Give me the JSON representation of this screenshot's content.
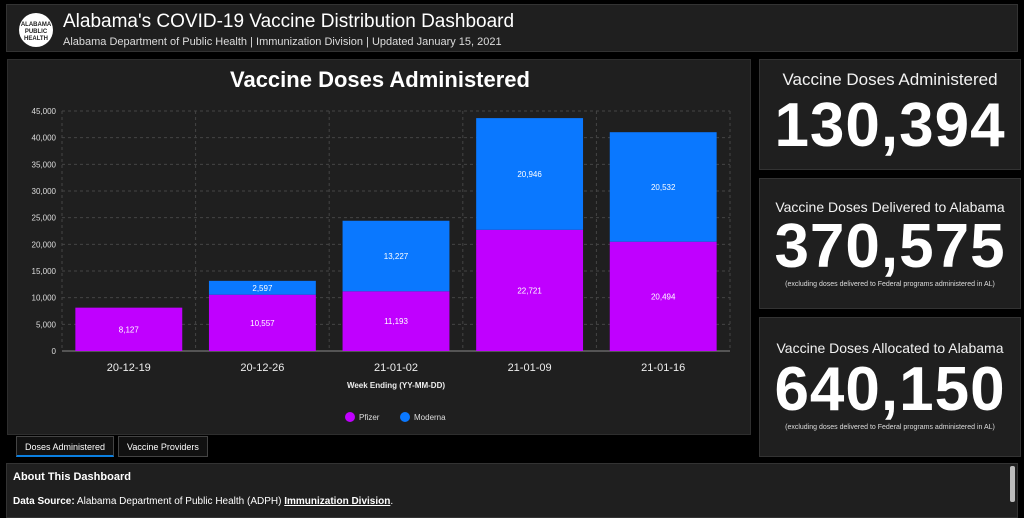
{
  "header": {
    "logo_lines": [
      "ALABAMA",
      "PUBLIC",
      "HEALTH"
    ],
    "title": "Alabama's COVID-19 Vaccine Distribution Dashboard",
    "subtitle": "Alabama Department of Public Health | Immunization Division | Updated January 15, 2021"
  },
  "stats": [
    {
      "label": "Vaccine Doses Administered",
      "value": "130,394",
      "note": ""
    },
    {
      "label": "Vaccine Doses Delivered to Alabama",
      "value": "370,575",
      "note": "(excluding doses delivered to Federal programs administered in AL)"
    },
    {
      "label": "Vaccine Doses Allocated to Alabama",
      "value": "640,150",
      "note": "(excluding doses delivered to Federal programs administered in AL)"
    }
  ],
  "tabs": [
    {
      "label": "Doses Administered",
      "active": true
    },
    {
      "label": "Vaccine Providers",
      "active": false
    }
  ],
  "about": {
    "title": "About This Dashboard",
    "source_label": "Data Source:",
    "source_text": "Alabama Department of Public Health (ADPH)",
    "source_link": "Immunization Division",
    "source_end": "."
  },
  "chart_data": {
    "type": "bar",
    "stacked": true,
    "title": "Vaccine Doses Administered",
    "xlabel": "Week Ending (YY-MM-DD)",
    "ylabel": "",
    "categories": [
      "20-12-19",
      "20-12-26",
      "21-01-02",
      "21-01-09",
      "21-01-16"
    ],
    "series": [
      {
        "name": "Pfizer",
        "color": "#c000ff",
        "values": [
          8127,
          10557,
          11193,
          22721,
          20494
        ]
      },
      {
        "name": "Moderna",
        "color": "#0a78ff",
        "values": [
          0,
          2597,
          13227,
          20946,
          20532
        ]
      }
    ],
    "ylim": [
      0,
      45000
    ],
    "yticks": [
      0,
      5000,
      10000,
      15000,
      20000,
      25000,
      30000,
      35000,
      40000,
      45000
    ],
    "ytick_labels": [
      "0",
      "5,000",
      "10,000",
      "15,000",
      "20,000",
      "25,000",
      "30,000",
      "35,000",
      "40,000",
      "45,000"
    ],
    "bar_labels": [
      [
        "8,127",
        "10,557",
        "11,193",
        "22,721",
        "20,494"
      ],
      [
        "",
        "2,597",
        "13,227",
        "20,946",
        "20,532"
      ]
    ],
    "grid": true,
    "legend": "bottom-center"
  }
}
